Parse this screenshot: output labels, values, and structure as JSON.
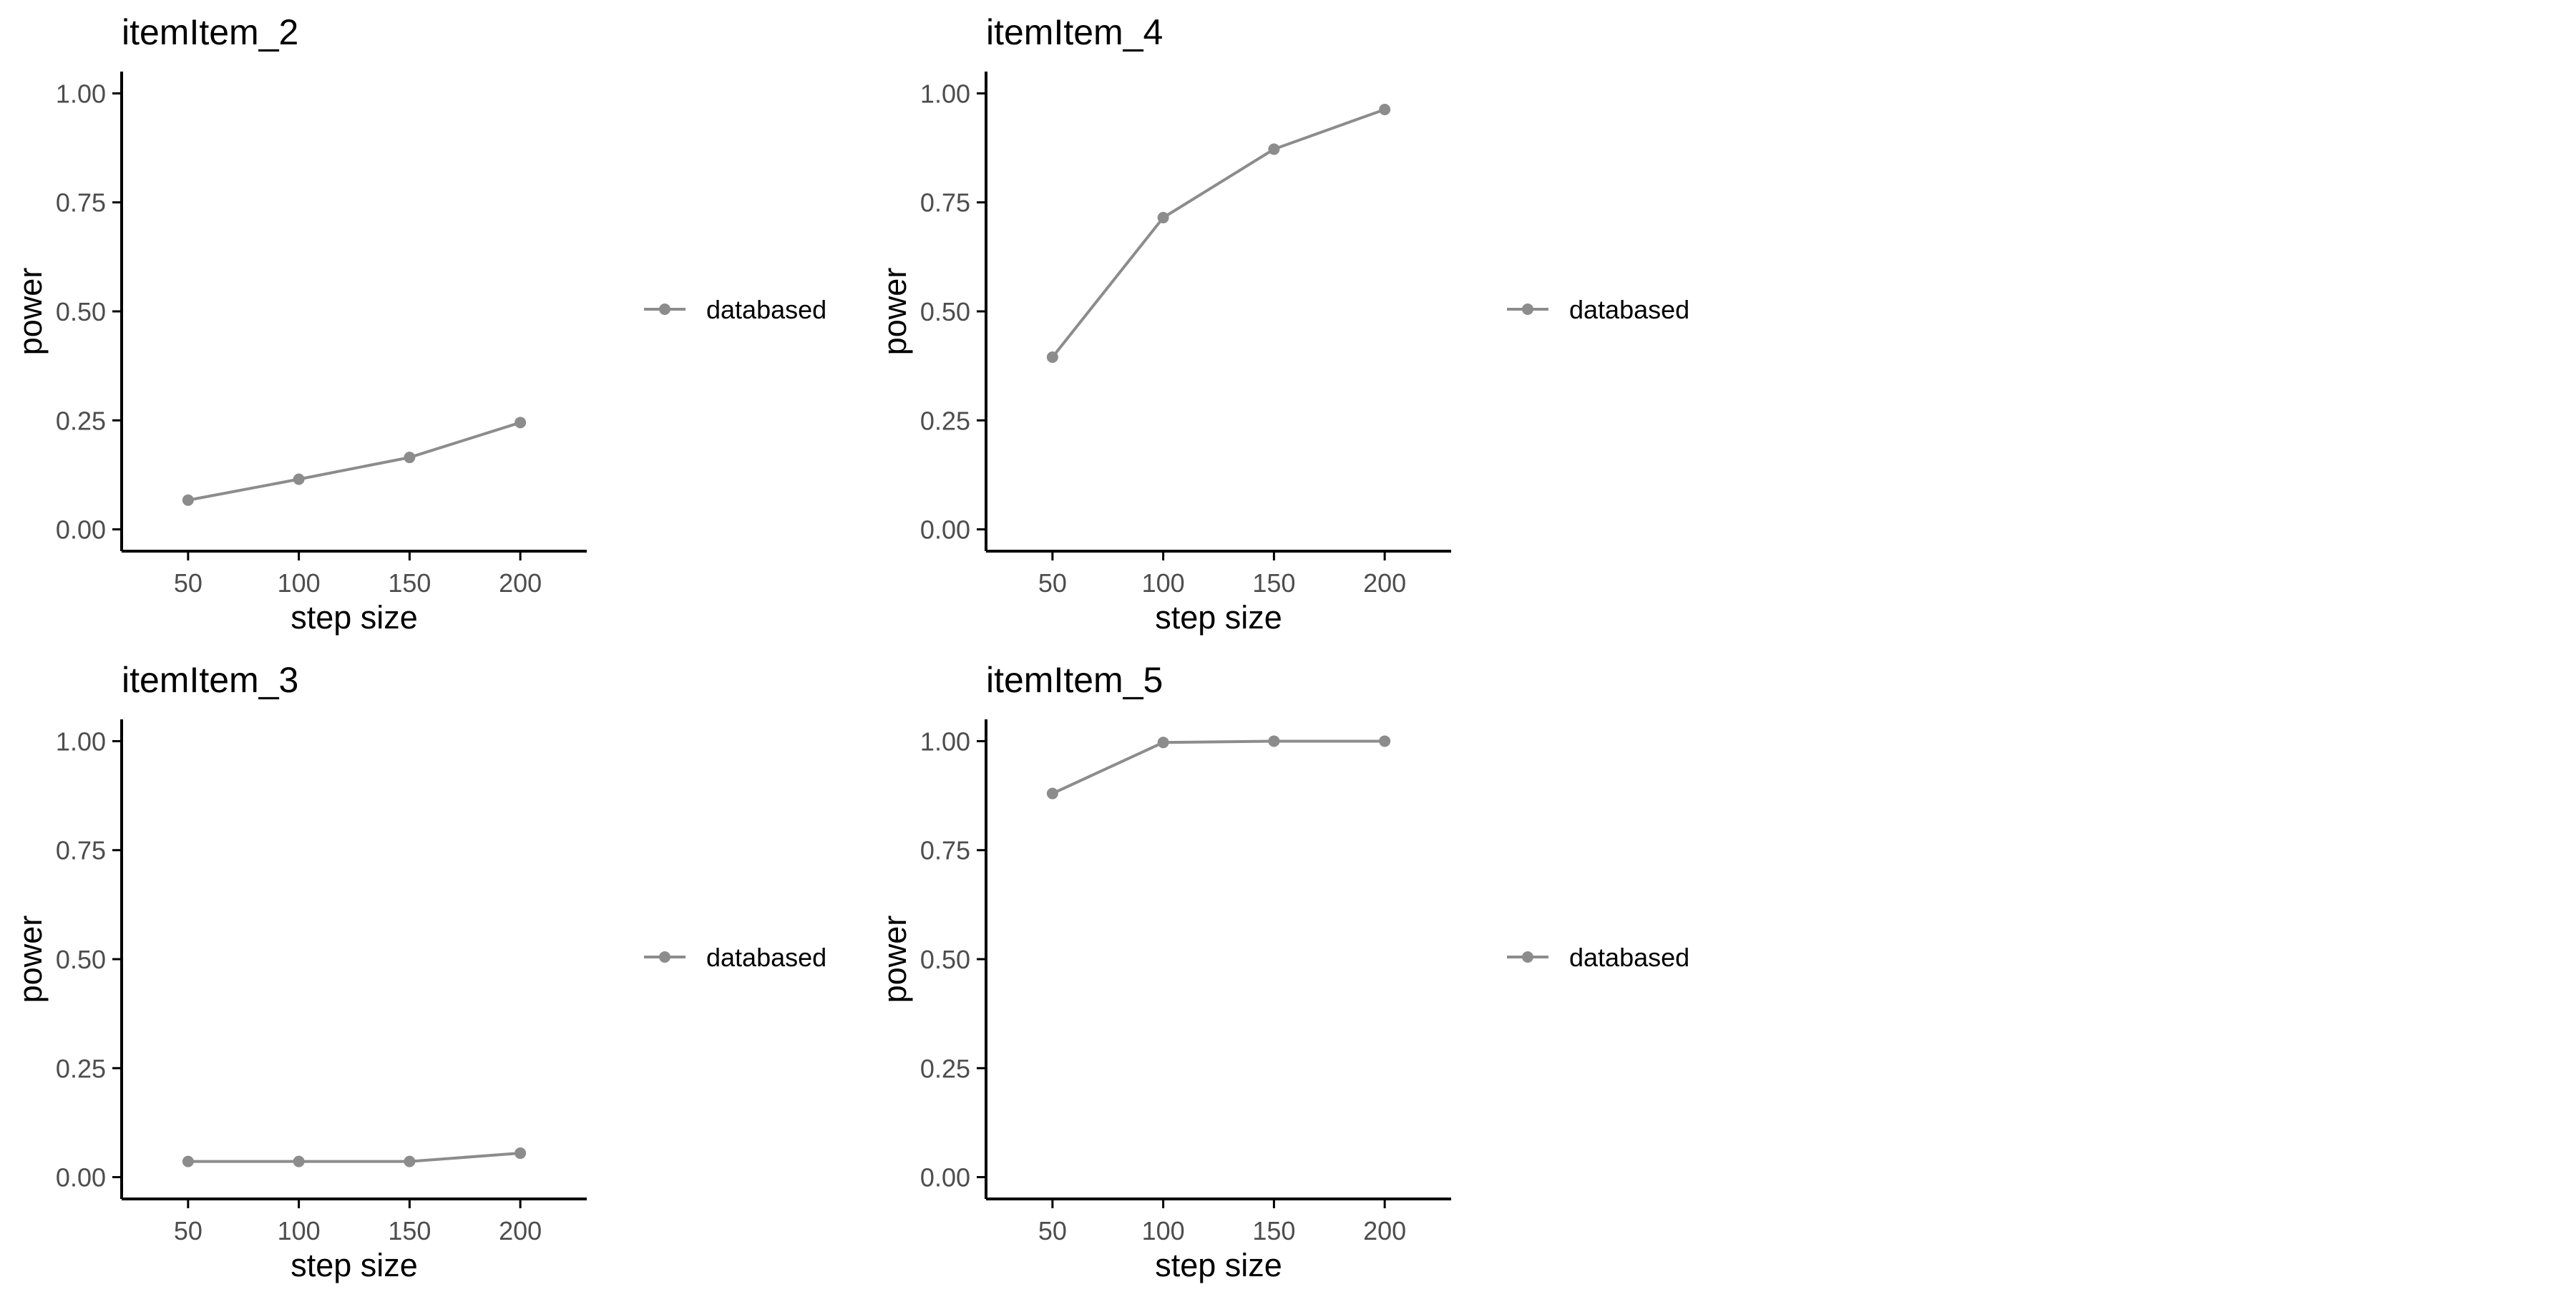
{
  "legend_label": "databased",
  "colors": {
    "series": "#8c8c8c",
    "axis": "#000000",
    "tick_text": "#4d4d4d",
    "text": "#000000"
  },
  "chart_data": [
    {
      "type": "line",
      "title": "itemItem_2",
      "xlabel": "step size",
      "ylabel": "power",
      "x": [
        50,
        100,
        150,
        200
      ],
      "series": [
        {
          "name": "databased",
          "values": [
            0.067,
            0.115,
            0.165,
            0.245
          ]
        }
      ],
      "xticks": [
        50,
        100,
        150,
        200
      ],
      "yticks": [
        0.0,
        0.25,
        0.5,
        0.75,
        1.0
      ],
      "ytick_labels": [
        "0.00",
        "0.25",
        "0.50",
        "0.75",
        "1.00"
      ],
      "xlim": [
        20,
        230
      ],
      "ylim": [
        -0.05,
        1.05
      ],
      "grid": false,
      "legend": "right"
    },
    {
      "type": "line",
      "title": "itemItem_4",
      "xlabel": "step size",
      "ylabel": "power",
      "x": [
        50,
        100,
        150,
        200
      ],
      "series": [
        {
          "name": "databased",
          "values": [
            0.395,
            0.715,
            0.872,
            0.963
          ]
        }
      ],
      "xticks": [
        50,
        100,
        150,
        200
      ],
      "yticks": [
        0.0,
        0.25,
        0.5,
        0.75,
        1.0
      ],
      "ytick_labels": [
        "0.00",
        "0.25",
        "0.50",
        "0.75",
        "1.00"
      ],
      "xlim": [
        20,
        230
      ],
      "ylim": [
        -0.05,
        1.05
      ],
      "grid": false,
      "legend": "right"
    },
    {
      "type": "line",
      "title": "itemItem_3",
      "xlabel": "step size",
      "ylabel": "power",
      "x": [
        50,
        100,
        150,
        200
      ],
      "series": [
        {
          "name": "databased",
          "values": [
            0.036,
            0.036,
            0.036,
            0.055
          ]
        }
      ],
      "xticks": [
        50,
        100,
        150,
        200
      ],
      "yticks": [
        0.0,
        0.25,
        0.5,
        0.75,
        1.0
      ],
      "ytick_labels": [
        "0.00",
        "0.25",
        "0.50",
        "0.75",
        "1.00"
      ],
      "xlim": [
        20,
        230
      ],
      "ylim": [
        -0.05,
        1.05
      ],
      "grid": false,
      "legend": "right"
    },
    {
      "type": "line",
      "title": "itemItem_5",
      "xlabel": "step size",
      "ylabel": "power",
      "x": [
        50,
        100,
        150,
        200
      ],
      "series": [
        {
          "name": "databased",
          "values": [
            0.88,
            0.997,
            1.0,
            1.0
          ]
        }
      ],
      "xticks": [
        50,
        100,
        150,
        200
      ],
      "yticks": [
        0.0,
        0.25,
        0.5,
        0.75,
        1.0
      ],
      "ytick_labels": [
        "0.00",
        "0.25",
        "0.50",
        "0.75",
        "1.00"
      ],
      "xlim": [
        20,
        230
      ],
      "ylim": [
        -0.05,
        1.05
      ],
      "grid": false,
      "legend": "right"
    }
  ]
}
